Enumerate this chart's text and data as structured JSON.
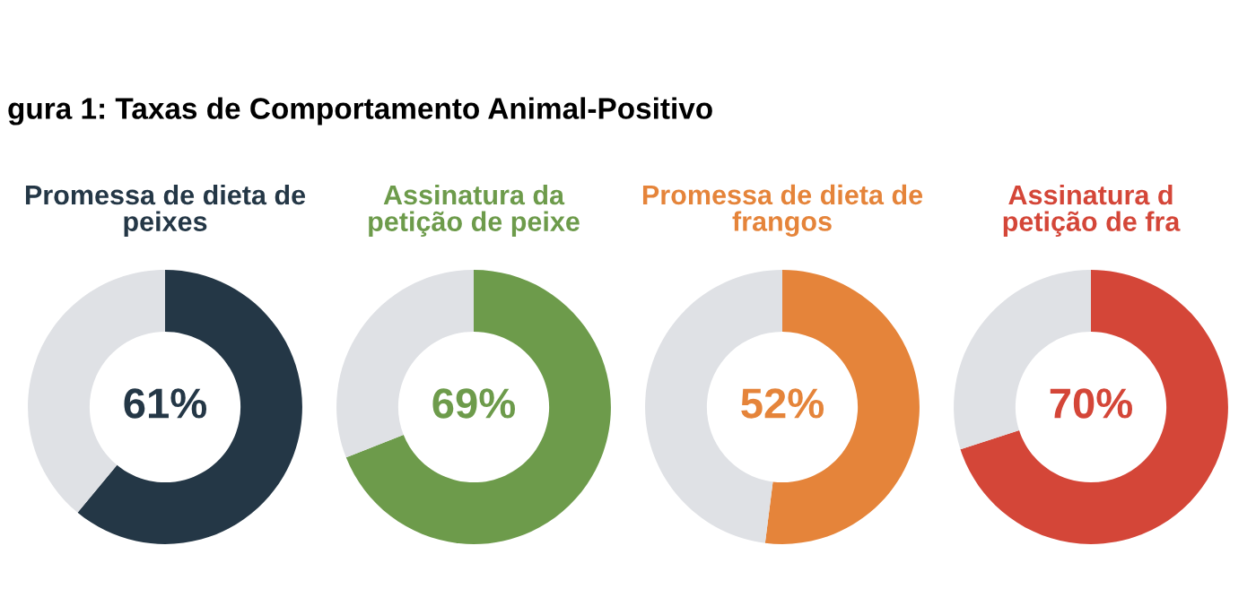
{
  "chart_data": [
    {
      "type": "donut",
      "title": "Promessa de dieta de\npeixes",
      "annotations": [
        "gura 1: Taxas de Comportamento Animal-Positivo"
      ],
      "categories": [
        null,
        null
      ],
      "values": [
        61,
        39
      ],
      "colors": [
        "#243746",
        "#dfe1e5"
      ],
      "value_labels": [
        "61%",
        null
      ]
    },
    {
      "type": "donut",
      "title": "Assinatura da\npetição de peixe",
      "categories": [
        null,
        null
      ],
      "values": [
        69,
        31
      ],
      "colors": [
        "#6d9b4b",
        "#dfe1e5"
      ],
      "value_labels": [
        "69%",
        null
      ]
    },
    {
      "type": "donut",
      "title": "Promessa de dieta de\nfrangos",
      "categories": [
        null,
        null
      ],
      "values": [
        52,
        48
      ],
      "colors": [
        "#e5843a",
        "#dfe1e5"
      ],
      "value_labels": [
        "52%",
        null
      ]
    },
    {
      "type": "donut",
      "title": "Assinatura d\npetição de fra",
      "categories": [
        null,
        null
      ],
      "values": [
        70,
        30
      ],
      "colors": [
        "#d44638",
        "#dfe1e5"
      ],
      "value_labels": [
        "70%",
        null
      ]
    }
  ]
}
